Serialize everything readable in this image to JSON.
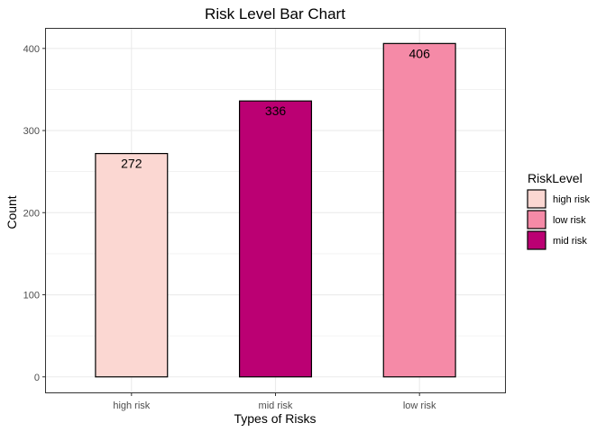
{
  "chart_data": {
    "type": "bar",
    "title": "Risk Level Bar Chart",
    "xlabel": "Types of Risks",
    "ylabel": "Count",
    "categories": [
      "high risk",
      "mid risk",
      "low risk"
    ],
    "values": [
      272,
      336,
      406
    ],
    "colors": [
      "#fbd7d2",
      "#bb0073",
      "#f58aa7"
    ],
    "ylim": [
      -20,
      425
    ],
    "yticks": [
      0,
      100,
      200,
      300,
      400
    ],
    "grid": true,
    "legend": {
      "title": "RiskLevel",
      "position": "right",
      "entries": [
        {
          "label": "high risk",
          "color": "#fbd7d2"
        },
        {
          "label": "low risk",
          "color": "#f58aa7"
        },
        {
          "label": "mid risk",
          "color": "#bb0073"
        }
      ]
    }
  }
}
